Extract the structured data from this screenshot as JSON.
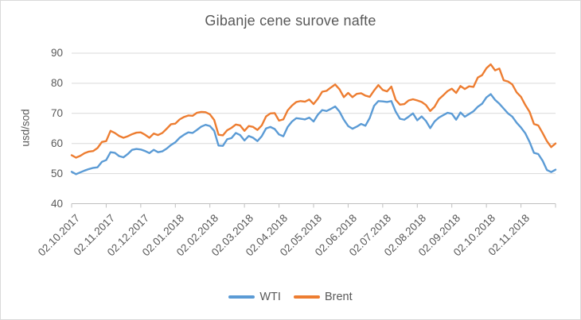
{
  "colors": {
    "text": "#595959",
    "gridline": "#d9d9d9",
    "axis_line": "#bfbfbf",
    "frame_border": "#d9d9d9",
    "wti": "#5B9BD5",
    "brent": "#ED7D31"
  },
  "chart_data": {
    "type": "line",
    "title": "Gibanje cene surove nafte",
    "ylabel": "usd/sod",
    "xlabel": "",
    "ylim": [
      40,
      90
    ],
    "yticks": [
      40,
      50,
      60,
      70,
      80,
      90
    ],
    "grid": true,
    "legend_position": "bottom",
    "x_tick_labels": [
      "02.10.2017",
      "02.11.2017",
      "02.12.2017",
      "02.01.2018",
      "02.02.2018",
      "02.03.2018",
      "02.04.2018",
      "02.05.2018",
      "02.06.2018",
      "02.07.2018",
      "02.08.2018",
      "02.09.2018",
      "02.10.2018",
      "02.11.2018"
    ],
    "points_per_tick_interval": 8,
    "series": [
      {
        "name": "WTI",
        "color": "#5B9BD5",
        "values": [
          50.6,
          49.8,
          50.4,
          51.0,
          51.5,
          51.9,
          52.1,
          53.9,
          54.5,
          57.1,
          56.9,
          55.8,
          55.4,
          56.5,
          57.9,
          58.2,
          58.0,
          57.5,
          56.8,
          57.9,
          57.1,
          57.4,
          58.3,
          59.5,
          60.4,
          61.9,
          62.9,
          63.7,
          63.5,
          64.5,
          65.6,
          66.2,
          65.8,
          64.2,
          59.3,
          59.2,
          61.4,
          61.8,
          63.5,
          62.8,
          61.0,
          62.5,
          61.9,
          60.8,
          62.4,
          65.0,
          65.5,
          64.8,
          63.0,
          62.4,
          65.5,
          67.3,
          68.4,
          68.2,
          68.0,
          68.6,
          67.3,
          69.6,
          71.1,
          70.8,
          71.5,
          72.3,
          70.6,
          67.9,
          65.8,
          64.9,
          65.6,
          66.5,
          65.9,
          68.5,
          72.5,
          74.1,
          74.0,
          73.8,
          74.1,
          70.6,
          68.2,
          67.9,
          68.9,
          70.0,
          67.7,
          69.0,
          67.5,
          65.1,
          67.3,
          68.6,
          69.4,
          70.2,
          69.9,
          67.9,
          70.3,
          68.9,
          69.8,
          70.7,
          72.2,
          73.2,
          75.3,
          76.4,
          74.5,
          73.2,
          71.6,
          70.0,
          68.9,
          66.9,
          65.3,
          63.4,
          60.5,
          56.9,
          56.5,
          54.3,
          51.2,
          50.5,
          51.3
        ]
      },
      {
        "name": "Brent",
        "color": "#ED7D31",
        "values": [
          56.1,
          55.3,
          55.9,
          56.8,
          57.3,
          57.5,
          58.5,
          60.5,
          60.8,
          64.2,
          63.5,
          62.5,
          61.9,
          62.4,
          63.1,
          63.6,
          63.7,
          62.9,
          61.9,
          63.3,
          62.8,
          63.5,
          64.9,
          66.4,
          66.6,
          68.0,
          68.8,
          69.3,
          69.2,
          70.2,
          70.5,
          70.4,
          69.7,
          67.8,
          62.9,
          62.7,
          64.4,
          65.2,
          66.3,
          66.0,
          64.2,
          65.8,
          65.5,
          64.5,
          66.0,
          69.0,
          70.0,
          70.1,
          67.6,
          68.0,
          71.0,
          72.6,
          73.8,
          74.1,
          73.9,
          74.6,
          73.1,
          74.9,
          77.2,
          77.5,
          78.6,
          79.6,
          78.0,
          75.4,
          76.8,
          75.4,
          76.5,
          76.7,
          75.9,
          75.5,
          77.6,
          79.4,
          77.8,
          77.3,
          78.9,
          74.5,
          72.9,
          73.1,
          74.3,
          74.7,
          74.3,
          73.8,
          72.8,
          70.8,
          72.2,
          74.7,
          76.0,
          77.4,
          78.2,
          76.8,
          79.1,
          78.1,
          79.0,
          78.8,
          81.9,
          82.7,
          85.0,
          86.3,
          84.3,
          84.9,
          81.0,
          80.6,
          79.6,
          77.0,
          75.5,
          72.8,
          70.5,
          66.5,
          66.0,
          63.5,
          60.8,
          58.8,
          60.0
        ]
      }
    ]
  }
}
